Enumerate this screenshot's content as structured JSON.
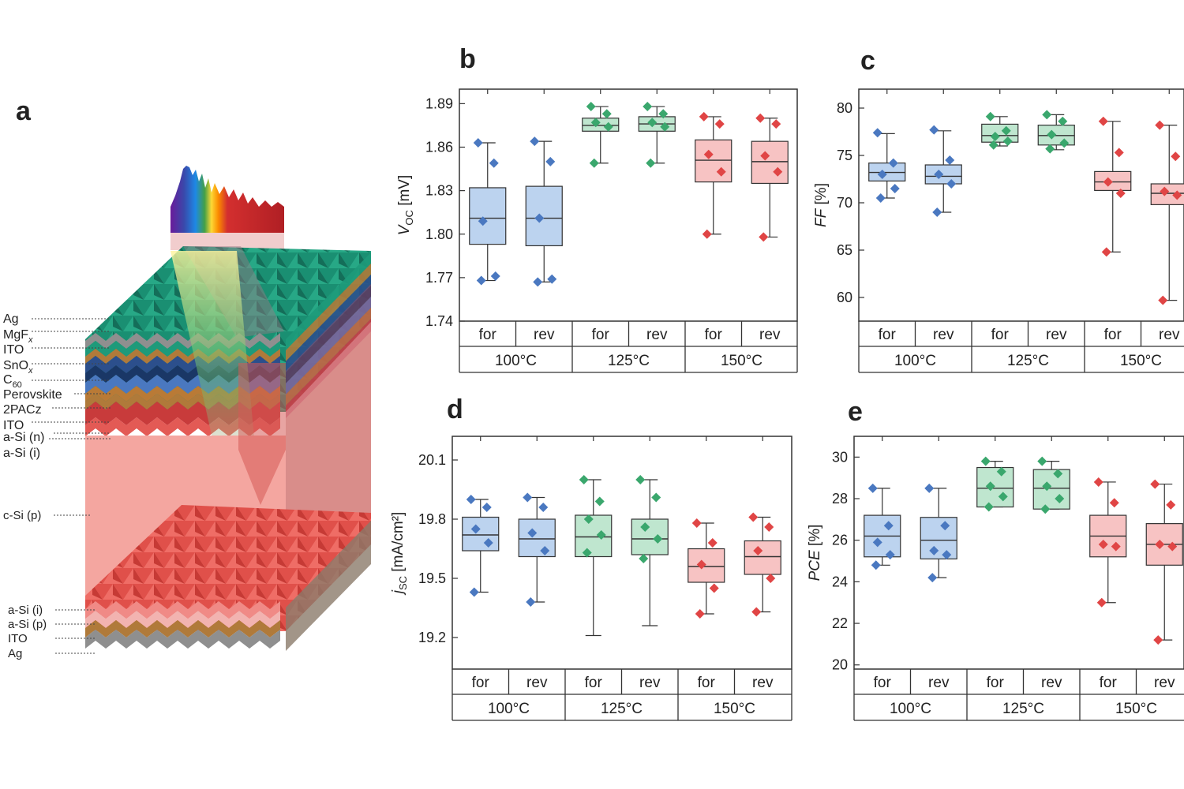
{
  "panel_a": {
    "letter": "a",
    "top_labels": [
      "Ag",
      "MgFx",
      "ITO",
      "SnOx",
      "C60",
      "Perovskite",
      "2PACz",
      "ITO",
      "a-Si (n)",
      "a-Si (i)"
    ],
    "middle_label": "c-Si (p)",
    "bottom_labels": [
      "a-Si (i)",
      "a-Si (p)",
      "ITO",
      "Ag"
    ],
    "colors": {
      "ag": "#8f8f8f",
      "mgf": "#1e9a7a",
      "ito": "#b07a3a",
      "sno": "#2c4f8c",
      "c60": "#1a3766",
      "perovskite": "#4a78c0",
      "pacz": "#b97a36",
      "asin": "#c83b3b",
      "csi": "#f4a6a0",
      "csi_dark": "#e8625c",
      "spectrum_red": "#b01f24"
    }
  },
  "chart_data": [
    {
      "id": "b",
      "letter": "b",
      "type": "box",
      "ylabel": "VOC [mV]",
      "ylabel_main": "V",
      "ylabel_sub": "OC",
      "ylabel_unit": " [mV]",
      "ylim": [
        1.74,
        1.9
      ],
      "yticks": [
        "1.89",
        "1.86",
        "1.83",
        "1.80",
        "1.77",
        "1.74"
      ],
      "x_labels": [
        "for",
        "rev",
        "for",
        "rev",
        "for",
        "rev"
      ],
      "groups": [
        "100°C",
        "125°C",
        "150°C"
      ],
      "colors": [
        "#4a78c0",
        "#3aa76d",
        "#e04545"
      ],
      "fills": [
        "#bcd3ef",
        "#bfe6cf",
        "#f7c3c3"
      ],
      "boxes": [
        {
          "min": 1.768,
          "q1": 1.793,
          "median": 1.811,
          "q3": 1.832,
          "max": 1.863,
          "points": [
            1.863,
            1.849,
            1.809,
            1.771,
            1.768
          ]
        },
        {
          "min": 1.767,
          "q1": 1.792,
          "median": 1.811,
          "q3": 1.833,
          "max": 1.864,
          "points": [
            1.864,
            1.85,
            1.811,
            1.769,
            1.767
          ]
        },
        {
          "min": 1.849,
          "q1": 1.871,
          "median": 1.875,
          "q3": 1.88,
          "max": 1.888,
          "points": [
            1.888,
            1.883,
            1.877,
            1.874,
            1.849
          ]
        },
        {
          "min": 1.849,
          "q1": 1.871,
          "median": 1.876,
          "q3": 1.881,
          "max": 1.888,
          "points": [
            1.888,
            1.883,
            1.877,
            1.874,
            1.849
          ]
        },
        {
          "min": 1.8,
          "q1": 1.836,
          "median": 1.851,
          "q3": 1.865,
          "max": 1.881,
          "points": [
            1.881,
            1.876,
            1.855,
            1.843,
            1.8
          ]
        },
        {
          "min": 1.798,
          "q1": 1.835,
          "median": 1.85,
          "q3": 1.864,
          "max": 1.88,
          "points": [
            1.88,
            1.876,
            1.854,
            1.843,
            1.798
          ]
        }
      ]
    },
    {
      "id": "c",
      "letter": "c",
      "type": "box",
      "ylabel": "FF [%]",
      "ylabel_main": "FF",
      "ylabel_sub": "",
      "ylabel_unit": " [%]",
      "ylim": [
        57.5,
        82
      ],
      "yticks": [
        "80",
        "75",
        "70",
        "65",
        "60"
      ],
      "x_labels": [
        "for",
        "rev",
        "for",
        "rev",
        "for",
        "rev"
      ],
      "groups": [
        "100°C",
        "125°C",
        "150°C"
      ],
      "colors": [
        "#4a78c0",
        "#3aa76d",
        "#e04545"
      ],
      "fills": [
        "#bcd3ef",
        "#bfe6cf",
        "#f7c3c3"
      ],
      "boxes": [
        {
          "min": 70.5,
          "q1": 72.3,
          "median": 73.2,
          "q3": 74.2,
          "max": 77.3,
          "points": [
            77.4,
            74.2,
            73.0,
            71.5,
            70.5
          ]
        },
        {
          "min": 69.0,
          "q1": 72.0,
          "median": 72.8,
          "q3": 74.0,
          "max": 77.6,
          "points": [
            77.7,
            74.5,
            73.0,
            72.0,
            69.0
          ]
        },
        {
          "min": 76.0,
          "q1": 76.4,
          "median": 77.1,
          "q3": 78.3,
          "max": 79.1,
          "points": [
            79.1,
            77.6,
            77.0,
            76.5,
            76.1
          ]
        },
        {
          "min": 75.6,
          "q1": 76.1,
          "median": 77.1,
          "q3": 78.2,
          "max": 79.3,
          "points": [
            79.3,
            78.6,
            77.2,
            76.3,
            75.7
          ]
        },
        {
          "min": 64.8,
          "q1": 71.3,
          "median": 72.2,
          "q3": 73.3,
          "max": 78.6,
          "points": [
            78.6,
            75.3,
            72.2,
            71.0,
            64.8
          ]
        },
        {
          "min": 59.7,
          "q1": 69.8,
          "median": 71.0,
          "q3": 72.0,
          "max": 78.2,
          "points": [
            78.2,
            74.9,
            71.2,
            70.8,
            59.7
          ]
        }
      ]
    },
    {
      "id": "d",
      "letter": "d",
      "type": "box",
      "ylabel": "jSC [mA/cm²]",
      "ylabel_main": "j",
      "ylabel_sub": "SC",
      "ylabel_unit": " [mA/cm²]",
      "ylim": [
        19.04,
        20.22
      ],
      "yticks": [
        "20.1",
        "19.8",
        "19.5",
        "19.2"
      ],
      "x_labels": [
        "for",
        "rev",
        "for",
        "rev",
        "for",
        "rev"
      ],
      "groups": [
        "100°C",
        "125°C",
        "150°C"
      ],
      "colors": [
        "#4a78c0",
        "#3aa76d",
        "#e04545"
      ],
      "fills": [
        "#bcd3ef",
        "#bfe6cf",
        "#f7c3c3"
      ],
      "boxes": [
        {
          "min": 19.43,
          "q1": 19.64,
          "median": 19.72,
          "q3": 19.81,
          "max": 19.9,
          "points": [
            19.9,
            19.86,
            19.75,
            19.68,
            19.43
          ]
        },
        {
          "min": 19.38,
          "q1": 19.61,
          "median": 19.7,
          "q3": 19.8,
          "max": 19.91,
          "points": [
            19.91,
            19.86,
            19.73,
            19.64,
            19.38
          ]
        },
        {
          "min": 19.21,
          "q1": 19.61,
          "median": 19.71,
          "q3": 19.82,
          "max": 20.0,
          "points": [
            20.0,
            19.89,
            19.8,
            19.72,
            19.63
          ]
        },
        {
          "min": 19.26,
          "q1": 19.62,
          "median": 19.7,
          "q3": 19.8,
          "max": 20.0,
          "points": [
            20.0,
            19.91,
            19.76,
            19.7,
            19.6
          ]
        },
        {
          "min": 19.32,
          "q1": 19.48,
          "median": 19.56,
          "q3": 19.65,
          "max": 19.78,
          "points": [
            19.78,
            19.68,
            19.57,
            19.45,
            19.32
          ]
        },
        {
          "min": 19.33,
          "q1": 19.52,
          "median": 19.61,
          "q3": 19.69,
          "max": 19.81,
          "points": [
            19.81,
            19.76,
            19.64,
            19.5,
            19.33
          ]
        }
      ]
    },
    {
      "id": "e",
      "letter": "e",
      "type": "box",
      "ylabel": "PCE [%]",
      "ylabel_main": "PCE",
      "ylabel_sub": "",
      "ylabel_unit": " [%]",
      "ylim": [
        19.8,
        31.0
      ],
      "yticks": [
        "30",
        "28",
        "26",
        "24",
        "22",
        "20"
      ],
      "x_labels": [
        "for",
        "rev",
        "for",
        "rev",
        "for",
        "rev"
      ],
      "groups": [
        "100°C",
        "125°C",
        "150°C"
      ],
      "colors": [
        "#4a78c0",
        "#3aa76d",
        "#e04545"
      ],
      "fills": [
        "#bcd3ef",
        "#bfe6cf",
        "#f7c3c3"
      ],
      "boxes": [
        {
          "min": 24.8,
          "q1": 25.2,
          "median": 26.2,
          "q3": 27.2,
          "max": 28.5,
          "points": [
            28.5,
            26.7,
            25.9,
            25.3,
            24.8
          ]
        },
        {
          "min": 24.2,
          "q1": 25.1,
          "median": 26.0,
          "q3": 27.1,
          "max": 28.5,
          "points": [
            28.5,
            26.7,
            25.5,
            25.3,
            24.2
          ]
        },
        {
          "min": 27.6,
          "q1": 27.6,
          "median": 28.5,
          "q3": 29.5,
          "max": 29.8,
          "points": [
            29.8,
            29.3,
            28.6,
            28.1,
            27.6
          ]
        },
        {
          "min": 27.5,
          "q1": 27.5,
          "median": 28.5,
          "q3": 29.4,
          "max": 29.8,
          "points": [
            29.8,
            29.2,
            28.6,
            28.0,
            27.5
          ]
        },
        {
          "min": 23.0,
          "q1": 25.2,
          "median": 26.2,
          "q3": 27.2,
          "max": 28.8,
          "points": [
            28.8,
            27.8,
            25.8,
            25.7,
            23.0
          ]
        },
        {
          "min": 21.2,
          "q1": 24.8,
          "median": 25.8,
          "q3": 26.8,
          "max": 28.7,
          "points": [
            28.7,
            27.7,
            25.8,
            25.7,
            21.2
          ]
        }
      ]
    }
  ]
}
